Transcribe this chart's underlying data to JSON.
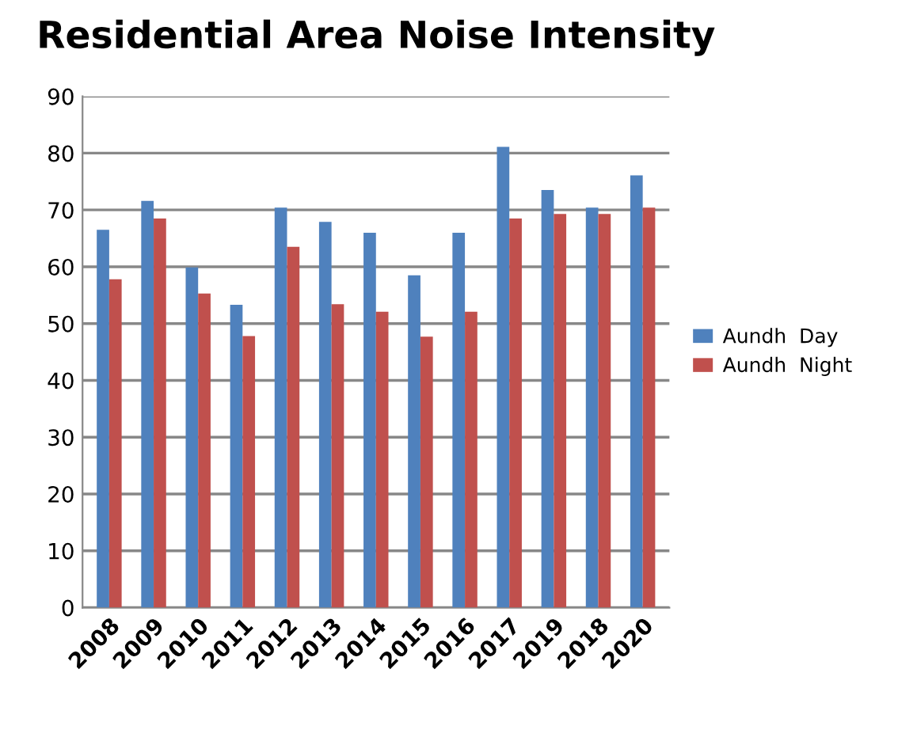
{
  "chart_data": {
    "type": "bar",
    "title": "Residential Area Noise Intensity",
    "categories": [
      "2008",
      "2009",
      "2010",
      "2011",
      "2012",
      "2013",
      "2014",
      "2015",
      "2016",
      "2017",
      "2019",
      "2018",
      "2020"
    ],
    "series": [
      {
        "name": "Aundh  Day",
        "color": "#4f81bd",
        "values": [
          66.5,
          71.6,
          59.9,
          53.3,
          70.4,
          67.9,
          66.0,
          58.5,
          66.0,
          81.1,
          73.5,
          70.4,
          76.1
        ]
      },
      {
        "name": "Aundh  Night",
        "color": "#c0504d",
        "values": [
          57.8,
          68.5,
          55.3,
          47.8,
          63.5,
          53.4,
          52.1,
          47.7,
          52.1,
          68.5,
          69.3,
          69.3,
          70.4
        ]
      }
    ],
    "ylim": [
      0,
      90
    ],
    "yticks": [
      0,
      10,
      20,
      30,
      40,
      50,
      60,
      70,
      80,
      90
    ],
    "grid": "y",
    "legend": "right"
  }
}
